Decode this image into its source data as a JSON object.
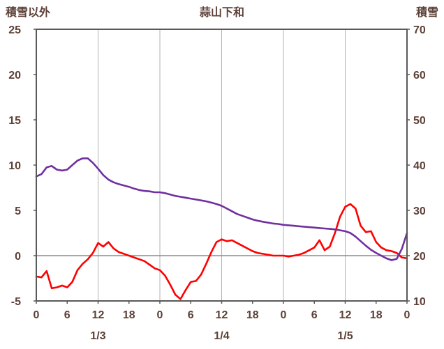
{
  "chart_data": {
    "type": "line",
    "title": "蒜山下和",
    "left_axis": {
      "title": "積雪以外",
      "min": -5,
      "max": 25,
      "ticks": [
        25,
        20,
        15,
        10,
        5,
        0,
        -5
      ]
    },
    "right_axis": {
      "title": "積雪",
      "min": 10,
      "max": 70,
      "ticks": [
        70,
        60,
        50,
        40,
        30,
        20,
        10
      ]
    },
    "x_axis": {
      "hours_total": 72,
      "tick_hours": [
        0,
        6,
        12,
        18,
        24,
        30,
        36,
        42,
        48,
        54,
        60,
        66,
        72
      ],
      "tick_labels": [
        "0",
        "6",
        "12",
        "18",
        "0",
        "6",
        "12",
        "18",
        "0",
        "6",
        "12",
        "18",
        "0"
      ],
      "day_labels": [
        {
          "label": "1/3",
          "hour": 12
        },
        {
          "label": "1/4",
          "hour": 36
        },
        {
          "label": "1/5",
          "hour": 60
        }
      ]
    },
    "gridline_hours": [
      12,
      24,
      36,
      48,
      60
    ],
    "zero_line_value": 0,
    "series": [
      {
        "name": "積雪以外",
        "axis": "left",
        "color": "#ff0000",
        "step_hours": 1,
        "values": [
          -2.3,
          -2.4,
          -1.7,
          -3.6,
          -3.5,
          -3.3,
          -3.5,
          -2.9,
          -1.6,
          -0.9,
          -0.4,
          0.3,
          1.4,
          1.0,
          1.5,
          0.8,
          0.4,
          0.2,
          0.0,
          -0.2,
          -0.4,
          -0.6,
          -1.0,
          -1.4,
          -1.6,
          -2.2,
          -3.2,
          -4.3,
          -4.8,
          -3.8,
          -2.9,
          -2.8,
          -2.1,
          -0.9,
          0.4,
          1.5,
          1.8,
          1.6,
          1.7,
          1.4,
          1.1,
          0.8,
          0.5,
          0.3,
          0.2,
          0.1,
          0.0,
          0.0,
          0.0,
          -0.1,
          0.0,
          0.1,
          0.3,
          0.6,
          0.9,
          1.7,
          0.6,
          1.0,
          2.5,
          4.3,
          5.4,
          5.7,
          5.2,
          3.3,
          2.6,
          2.7,
          1.5,
          0.9,
          0.6,
          0.5,
          0.3,
          -0.2,
          -0.3
        ]
      },
      {
        "name": "積雪",
        "axis": "right",
        "color": "#7030a0",
        "step_hours": 1,
        "values": [
          37.5,
          38.0,
          39.5,
          39.8,
          39.0,
          38.8,
          39.0,
          40.0,
          41.0,
          41.5,
          41.5,
          40.5,
          39.2,
          37.8,
          36.8,
          36.2,
          35.8,
          35.5,
          35.2,
          34.8,
          34.5,
          34.3,
          34.2,
          34.0,
          34.0,
          33.8,
          33.5,
          33.2,
          33.0,
          32.8,
          32.6,
          32.4,
          32.2,
          32.0,
          31.7,
          31.4,
          31.0,
          30.4,
          29.8,
          29.2,
          28.8,
          28.4,
          28.0,
          27.7,
          27.5,
          27.3,
          27.1,
          27.0,
          26.8,
          26.7,
          26.6,
          26.5,
          26.4,
          26.3,
          26.2,
          26.1,
          26.0,
          25.9,
          25.8,
          25.6,
          25.4,
          25.0,
          24.2,
          23.2,
          22.2,
          21.3,
          20.6,
          20.0,
          19.4,
          19.0,
          19.3,
          21.5,
          25.0
        ]
      }
    ],
    "colors": {
      "frame": "#595959",
      "grid": "#b3b3b3",
      "zero_line": "#8c8c8c",
      "label_text": "#5d4037",
      "background": "#ffffff"
    }
  }
}
